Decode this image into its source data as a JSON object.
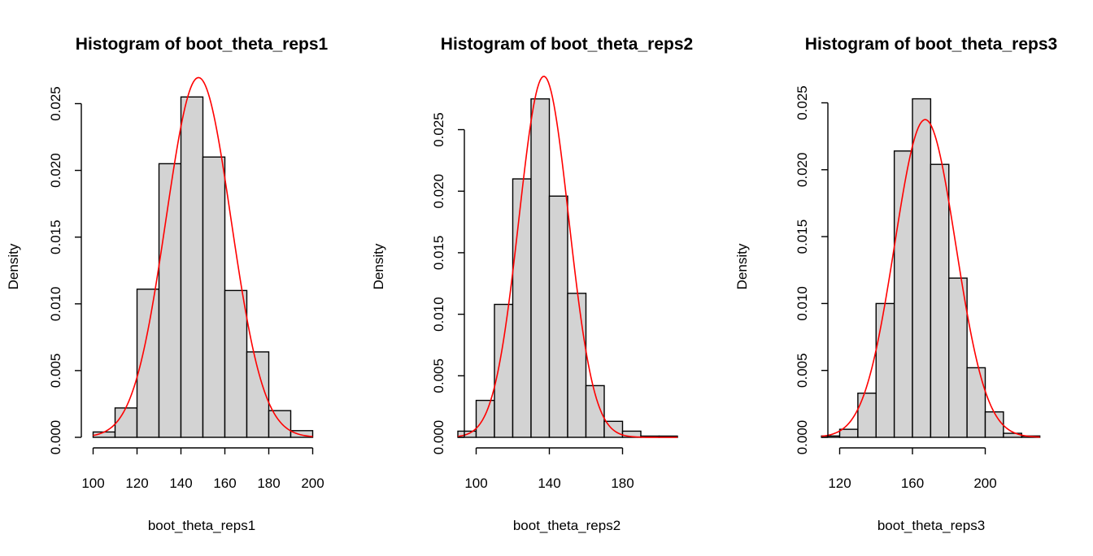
{
  "chart_data": [
    {
      "type": "bar",
      "subtype": "histogram",
      "title": "Histogram of boot_theta_reps1",
      "xlabel": "boot_theta_reps1",
      "ylabel": "Density",
      "x_ticks": [
        100,
        120,
        140,
        160,
        180,
        200
      ],
      "y_ticks": [
        "0.000",
        "0.005",
        "0.010",
        "0.015",
        "0.020",
        "0.025"
      ],
      "xlim": [
        100,
        200
      ],
      "ylim": [
        0,
        0.0255
      ],
      "bin_width": 10,
      "bin_start": 100,
      "densities": [
        0.0004,
        0.0022,
        0.0111,
        0.0205,
        0.0255,
        0.021,
        0.011,
        0.0064,
        0.002,
        0.0005
      ],
      "curve": {
        "type": "normal",
        "mean": 148,
        "sd": 14.8,
        "color": "#ff0000"
      },
      "bar_fill": "#d3d3d3"
    },
    {
      "type": "bar",
      "subtype": "histogram",
      "title": "Histogram of boot_theta_reps2",
      "xlabel": "boot_theta_reps2",
      "ylabel": "Density",
      "x_ticks": [
        100,
        140,
        180
      ],
      "y_ticks": [
        "0.000",
        "0.005",
        "0.010",
        "0.015",
        "0.020",
        "0.025"
      ],
      "xlim": [
        100,
        200
      ],
      "ylim": [
        0,
        0.025
      ],
      "bin_width": 10,
      "bin_start": 90,
      "densities": [
        0.0005,
        0.003,
        0.0108,
        0.021,
        0.0275,
        0.0196,
        0.0117,
        0.0042,
        0.0013,
        0.0005,
        0.0001,
        0.0001
      ],
      "curve": {
        "type": "normal",
        "mean": 137,
        "sd": 13.6,
        "color": "#ff0000"
      },
      "bar_fill": "#d3d3d3"
    },
    {
      "type": "bar",
      "subtype": "histogram",
      "title": "Histogram of boot_theta_reps3",
      "xlabel": "boot_theta_reps3",
      "ylabel": "Density",
      "x_ticks": [
        120,
        160,
        200
      ],
      "y_ticks": [
        "0.000",
        "0.005",
        "0.010",
        "0.015",
        "0.020",
        "0.025"
      ],
      "xlim": [
        120,
        220
      ],
      "ylim": [
        0,
        0.025
      ],
      "bin_width": 10,
      "bin_start": 110,
      "densities": [
        0.0001,
        0.0006,
        0.0033,
        0.01,
        0.0214,
        0.0253,
        0.0204,
        0.0119,
        0.0052,
        0.0019,
        0.0003,
        0.0001
      ],
      "curve": {
        "type": "normal",
        "mean": 167,
        "sd": 16.8,
        "color": "#ff0000"
      },
      "bar_fill": "#d3d3d3"
    }
  ]
}
